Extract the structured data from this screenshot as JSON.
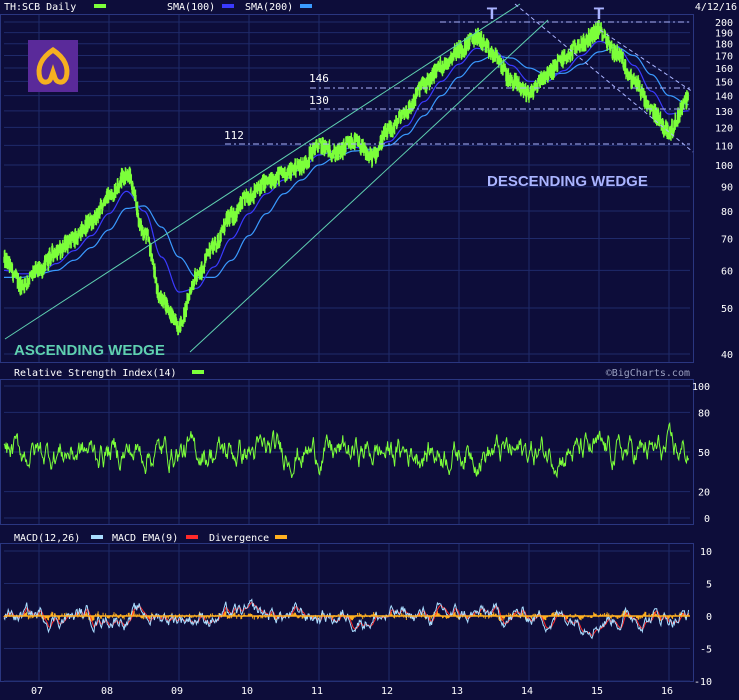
{
  "header": {
    "symbol": "TH:SCB Daily",
    "sma100_label": "SMA(100)",
    "sma200_label": "SMA(200)",
    "date": "4/12/16"
  },
  "colors": {
    "background": "#0d0d3a",
    "price": "#7cff3a",
    "sma100": "#3a3aff",
    "sma200": "#3a9aff",
    "macd": "#ffffff",
    "macd_ema": "#ff2a2a",
    "divergence": "#ffb020",
    "grid": "#1f2a6a",
    "annotation": "#aab4ff",
    "trendline": "#5fd0b0"
  },
  "price_panel": {
    "y_ticks": [
      200,
      190,
      180,
      170,
      160,
      150,
      140,
      130,
      120,
      110,
      100,
      90,
      80,
      70,
      60,
      50,
      40
    ],
    "scale": "log",
    "ylim": [
      40,
      200
    ],
    "level_labels": [
      "146",
      "130",
      "112"
    ],
    "top_labels": [
      "T",
      "T"
    ],
    "ascending_label": "ASCENDING WEDGE",
    "descending_label": "DESCENDING WEDGE"
  },
  "rsi_panel": {
    "label": "Relative Strength Index(14)",
    "watermark": "©BigCharts.com",
    "y_ticks": [
      "100",
      "80",
      "50",
      "20",
      "0"
    ]
  },
  "macd_panel": {
    "label": "MACD(12,26)",
    "ema_label": "MACD EMA(9)",
    "divergence_label": "Divergence",
    "y_ticks": [
      "10",
      "5",
      "0",
      "-5",
      "-10"
    ]
  },
  "x_axis": {
    "tick_labels": [
      "07",
      "08",
      "09",
      "10",
      "11",
      "12",
      "13",
      "14",
      "15",
      "16"
    ]
  },
  "chart_data": {
    "type": "line",
    "title": "TH:SCB Daily",
    "x": [
      2006.5,
      2006.75,
      2007.0,
      2007.25,
      2007.5,
      2007.75,
      2008.0,
      2008.25,
      2008.5,
      2008.75,
      2009.0,
      2009.25,
      2009.5,
      2009.75,
      2010.0,
      2010.25,
      2010.5,
      2010.75,
      2011.0,
      2011.25,
      2011.5,
      2011.75,
      2012.0,
      2012.25,
      2012.5,
      2012.75,
      2013.0,
      2013.25,
      2013.5,
      2013.75,
      2014.0,
      2014.25,
      2014.5,
      2014.75,
      2015.0,
      2015.25,
      2015.5,
      2015.75,
      2016.0,
      2016.28
    ],
    "series": [
      {
        "name": "TH:SCB Daily",
        "values": [
          63,
          56,
          60,
          66,
          70,
          76,
          86,
          96,
          72,
          52,
          46,
          58,
          68,
          78,
          86,
          92,
          96,
          100,
          110,
          106,
          112,
          104,
          118,
          130,
          148,
          162,
          175,
          186,
          170,
          150,
          142,
          155,
          168,
          180,
          192,
          172,
          150,
          130,
          118,
          138
        ]
      },
      {
        "name": "SMA(100)",
        "values": [
          60,
          59,
          59,
          62,
          66,
          71,
          79,
          88,
          80,
          64,
          54,
          55,
          61,
          70,
          79,
          87,
          93,
          98,
          105,
          107,
          109,
          107,
          112,
          121,
          136,
          150,
          163,
          176,
          174,
          162,
          150,
          150,
          158,
          170,
          182,
          178,
          162,
          143,
          128,
          130
        ]
      },
      {
        "name": "SMA(200)",
        "values": [
          58,
          58,
          59,
          60,
          63,
          67,
          73,
          81,
          82,
          74,
          64,
          58,
          58,
          63,
          71,
          79,
          87,
          93,
          100,
          104,
          107,
          108,
          110,
          116,
          127,
          140,
          153,
          165,
          170,
          168,
          160,
          155,
          156,
          163,
          173,
          177,
          170,
          155,
          140,
          134
        ]
      }
    ],
    "ylim": [
      40,
      200
    ],
    "ylabel": "",
    "xlabel": ""
  }
}
